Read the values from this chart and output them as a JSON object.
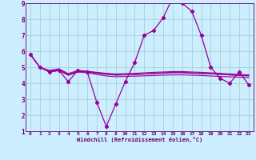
{
  "xlabel": "Windchill (Refroidissement éolien,°C)",
  "bg_color": "#cceeff",
  "line_color": "#990099",
  "grid_color": "#99cccc",
  "axis_color": "#660066",
  "text_color": "#660066",
  "xlim": [
    -0.5,
    23.5
  ],
  "ylim": [
    1,
    9
  ],
  "xticks": [
    0,
    1,
    2,
    3,
    4,
    5,
    6,
    7,
    8,
    9,
    10,
    11,
    12,
    13,
    14,
    15,
    16,
    17,
    18,
    19,
    20,
    21,
    22,
    23
  ],
  "yticks": [
    1,
    2,
    3,
    4,
    5,
    6,
    7,
    8,
    9
  ],
  "series_main_x": [
    0,
    1,
    2,
    3,
    4,
    5,
    6,
    7,
    8,
    9,
    10,
    11,
    12,
    13,
    14,
    15,
    16,
    17,
    18,
    19,
    20,
    21,
    22,
    23
  ],
  "series_main_y": [
    5.8,
    5.0,
    4.7,
    4.8,
    4.1,
    4.8,
    4.7,
    2.8,
    1.3,
    2.7,
    4.1,
    5.3,
    7.0,
    7.3,
    8.1,
    9.35,
    9.0,
    8.5,
    7.0,
    5.0,
    4.3,
    4.0,
    4.7,
    3.9
  ],
  "series_line2_x": [
    0,
    1,
    2,
    3,
    4,
    5,
    6,
    7,
    8,
    9,
    10,
    11,
    12,
    13,
    14,
    15,
    16,
    17,
    18,
    19,
    20,
    21,
    22,
    23
  ],
  "series_line2_y": [
    5.8,
    5.0,
    4.7,
    4.8,
    4.5,
    4.7,
    4.65,
    4.55,
    4.45,
    4.4,
    4.42,
    4.44,
    4.46,
    4.48,
    4.5,
    4.52,
    4.52,
    4.5,
    4.48,
    4.45,
    4.42,
    4.4,
    4.38,
    4.35
  ],
  "series_line3_x": [
    0,
    1,
    2,
    3,
    4,
    5,
    6,
    7,
    8,
    9,
    10,
    11,
    12,
    13,
    14,
    15,
    16,
    17,
    18,
    19,
    20,
    21,
    22,
    23
  ],
  "series_line3_y": [
    5.8,
    5.0,
    4.75,
    4.85,
    4.55,
    4.75,
    4.7,
    4.62,
    4.55,
    4.5,
    4.52,
    4.54,
    4.57,
    4.6,
    4.62,
    4.65,
    4.65,
    4.62,
    4.6,
    4.58,
    4.55,
    4.52,
    4.5,
    4.48
  ],
  "series_line4_x": [
    0,
    1,
    2,
    3,
    4,
    5,
    6,
    7,
    8,
    9,
    10,
    11,
    12,
    13,
    14,
    15,
    16,
    17,
    18,
    19,
    20,
    21,
    22,
    23
  ],
  "series_line4_y": [
    5.8,
    5.0,
    4.8,
    4.9,
    4.6,
    4.8,
    4.75,
    4.68,
    4.62,
    4.58,
    4.6,
    4.62,
    4.65,
    4.68,
    4.7,
    4.73,
    4.73,
    4.7,
    4.68,
    4.65,
    4.62,
    4.58,
    4.55,
    4.52
  ],
  "series_line5_x": [
    2,
    3,
    4,
    5,
    6,
    7,
    8,
    9,
    10,
    11,
    12,
    13,
    14,
    15,
    16,
    17,
    18,
    19,
    20,
    21,
    22,
    23
  ],
  "series_line5_y": [
    4.7,
    4.8,
    4.5,
    4.75,
    4.72,
    4.65,
    4.58,
    4.52,
    4.54,
    4.56,
    4.58,
    4.62,
    4.65,
    4.68,
    4.68,
    4.65,
    4.62,
    4.6,
    4.56,
    4.52,
    4.48,
    4.45
  ]
}
